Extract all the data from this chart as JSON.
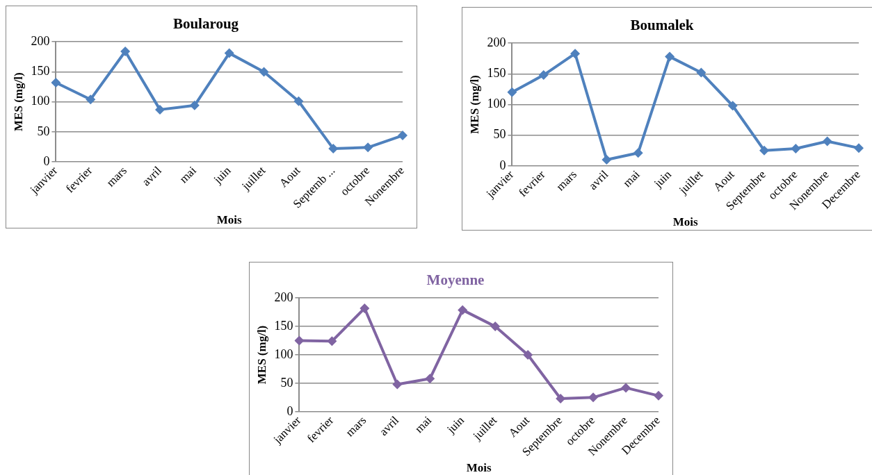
{
  "chart_data": [
    {
      "type": "line",
      "title": "Boularoug",
      "xlabel": "Mois",
      "ylabel": "MES (mg/l)",
      "categories": [
        "janvier",
        "fevrier",
        "mars",
        "avril",
        "mai",
        "juin",
        "juillet",
        "Aout",
        "Septemb ...",
        "octobre",
        "Nonembre"
      ],
      "series": [
        {
          "color": "#4f81bd",
          "values": [
            132,
            104,
            184,
            87,
            94,
            181,
            150,
            101,
            22,
            24,
            44
          ]
        }
      ],
      "ylim": [
        0,
        200
      ],
      "yticks": [
        0,
        50,
        100,
        150,
        200
      ],
      "grid": "y",
      "marker": "diamond",
      "legend": false
    },
    {
      "type": "line",
      "title": "Boumalek",
      "xlabel": "Mois",
      "ylabel": "MES (mg/l)",
      "categories": [
        "janvier",
        "fevrier",
        "mars",
        "avril",
        "mai",
        "juin",
        "juillet",
        "Aout",
        "Septembre",
        "octobre",
        "Nonembre",
        "Decembre"
      ],
      "series": [
        {
          "color": "#4f81bd",
          "values": [
            120,
            148,
            183,
            10,
            21,
            178,
            152,
            98,
            25,
            28,
            40,
            29
          ]
        }
      ],
      "ylim": [
        0,
        200
      ],
      "yticks": [
        0,
        50,
        100,
        150,
        200
      ],
      "grid": "y",
      "marker": "diamond",
      "legend": false
    },
    {
      "type": "line",
      "title": "Moyenne",
      "xlabel": "Mois",
      "ylabel": "MES (mg/l)",
      "categories": [
        "janvier",
        "fevrier",
        "mars",
        "avril",
        "mai",
        "juin",
        "juillet",
        "Aout",
        "Septembre",
        "octobre",
        "Nonembre",
        "Decembre"
      ],
      "series": [
        {
          "color": "#8064a2",
          "values": [
            125,
            124,
            182,
            48,
            58,
            179,
            150,
            100,
            23,
            25,
            42,
            28
          ]
        }
      ],
      "ylim": [
        0,
        200
      ],
      "yticks": [
        0,
        50,
        100,
        150,
        200
      ],
      "grid": "y",
      "marker": "diamond",
      "legend": false
    }
  ]
}
